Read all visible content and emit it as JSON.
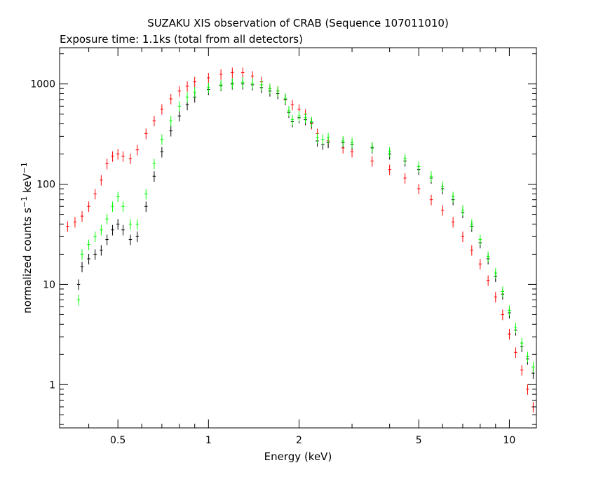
{
  "chart_data": {
    "type": "scatter",
    "title": "SUZAKU XIS observation of CRAB (Sequence 107011010)",
    "subtitle": "Exposure time: 1.1ks (total from all detectors)",
    "xlabel": "Energy (keV)",
    "ylabel_main": "normalized counts s",
    "ylabel_sup1": "−1",
    "ylabel_mid": " keV",
    "ylabel_sup2": "−1",
    "xscale": "log",
    "yscale": "log",
    "xlim": [
      0.32,
      12.3
    ],
    "ylim": [
      0.37,
      2300
    ],
    "x_ticks": [
      {
        "value": 0.5,
        "label": "0.5"
      },
      {
        "value": 1,
        "label": "1"
      },
      {
        "value": 2,
        "label": "2"
      },
      {
        "value": 5,
        "label": "5"
      },
      {
        "value": 10,
        "label": "10"
      }
    ],
    "y_ticks": [
      {
        "value": 1,
        "label": "1"
      },
      {
        "value": 10,
        "label": "10"
      },
      {
        "value": 100,
        "label": "100"
      },
      {
        "value": 1000,
        "label": "1000"
      }
    ],
    "grid": false,
    "legend": "none",
    "series": [
      {
        "color": "#ff0000",
        "x": [
          0.32,
          0.34,
          0.36,
          0.38,
          0.4,
          0.42,
          0.44,
          0.46,
          0.48,
          0.5,
          0.52,
          0.55,
          0.58,
          0.62,
          0.66,
          0.7,
          0.75,
          0.8,
          0.85,
          0.9,
          1.0,
          1.1,
          1.2,
          1.3,
          1.4,
          1.5,
          1.6,
          1.7,
          1.8,
          1.9,
          2.0,
          2.1,
          2.2,
          2.3,
          2.5,
          2.8,
          3.0,
          3.5,
          4.0,
          4.5,
          5.0,
          5.5,
          6.0,
          6.5,
          7.0,
          7.5,
          8.0,
          8.5,
          9.0,
          9.5,
          10.0,
          10.5,
          11.0,
          11.5,
          12.0
        ],
        "y": [
          40,
          38,
          42,
          48,
          60,
          80,
          110,
          160,
          190,
          200,
          190,
          180,
          220,
          320,
          430,
          560,
          710,
          850,
          950,
          1050,
          1150,
          1250,
          1300,
          1300,
          1200,
          1050,
          900,
          850,
          700,
          620,
          560,
          500,
          400,
          320,
          270,
          230,
          210,
          170,
          140,
          115,
          90,
          70,
          55,
          42,
          30,
          22,
          16,
          11,
          7.5,
          5,
          3.2,
          2.1,
          1.4,
          0.9,
          0.6
        ]
      },
      {
        "color": "#000000",
        "x": [
          0.37,
          0.38,
          0.4,
          0.42,
          0.44,
          0.46,
          0.48,
          0.5,
          0.52,
          0.55,
          0.58,
          0.62,
          0.66,
          0.7,
          0.75,
          0.8,
          0.85,
          0.9,
          1.0,
          1.1,
          1.2,
          1.3,
          1.4,
          1.5,
          1.6,
          1.7,
          1.8,
          1.85,
          1.9,
          2.0,
          2.1,
          2.2,
          2.3,
          2.4,
          2.5,
          2.8,
          3.0,
          3.5,
          4.0,
          4.5,
          5.0,
          5.5,
          6.0,
          6.5,
          7.0,
          7.5,
          8.0,
          8.5,
          9.0,
          9.5,
          10.0,
          10.5,
          11.0,
          11.5,
          12.0
        ],
        "y": [
          10,
          15,
          18,
          20,
          22,
          28,
          35,
          40,
          35,
          28,
          30,
          60,
          120,
          210,
          340,
          480,
          620,
          740,
          880,
          960,
          1000,
          1000,
          980,
          920,
          850,
          800,
          700,
          520,
          420,
          460,
          440,
          410,
          270,
          250,
          260,
          260,
          250,
          230,
          200,
          170,
          140,
          115,
          90,
          70,
          52,
          38,
          26,
          18,
          12,
          8,
          5.2,
          3.5,
          2.4,
          1.8,
          1.3
        ]
      },
      {
        "color": "#00ff00",
        "x": [
          0.37,
          0.38,
          0.4,
          0.42,
          0.44,
          0.46,
          0.48,
          0.5,
          0.52,
          0.55,
          0.58,
          0.62,
          0.66,
          0.7,
          0.75,
          0.8,
          0.85,
          0.9,
          1.0,
          1.1,
          1.2,
          1.3,
          1.4,
          1.5,
          1.6,
          1.7,
          1.8,
          1.85,
          1.9,
          2.0,
          2.1,
          2.2,
          2.3,
          2.4,
          2.5,
          2.8,
          3.0,
          3.5,
          4.0,
          4.5,
          5.0,
          5.5,
          6.0,
          6.5,
          7.0,
          7.5,
          8.0,
          8.5,
          9.0,
          9.5,
          10.0,
          10.5,
          11.0,
          11.5,
          12.0
        ],
        "y": [
          7,
          20,
          25,
          30,
          35,
          45,
          60,
          75,
          60,
          40,
          40,
          80,
          160,
          280,
          430,
          600,
          740,
          830,
          920,
          980,
          1020,
          1040,
          1020,
          980,
          900,
          850,
          720,
          540,
          440,
          480,
          460,
          420,
          290,
          280,
          290,
          270,
          260,
          235,
          210,
          180,
          150,
          120,
          95,
          75,
          55,
          40,
          28,
          19,
          13,
          8.5,
          5.5,
          3.7,
          2.6,
          1.9,
          1.5
        ]
      }
    ]
  }
}
